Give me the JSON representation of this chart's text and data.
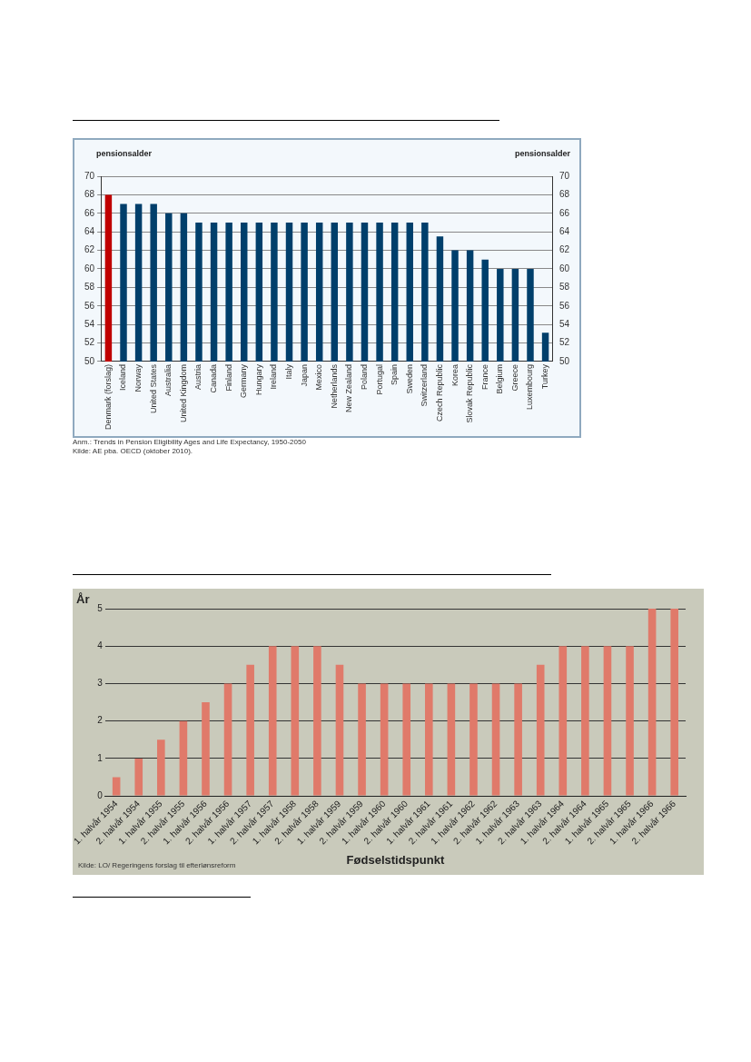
{
  "chart_data": [
    {
      "type": "bar",
      "ylabel": "pensionsalder",
      "y2label": "pensionsalder",
      "categories": [
        "Denmark (forslag)",
        "Iceland",
        "Norway",
        "United States",
        "Australia",
        "United Kingdom",
        "Austria",
        "Canada",
        "Finland",
        "Germany",
        "Hungary",
        "Ireland",
        "Italy",
        "Japan",
        "Mexico",
        "Netherlands",
        "New Zealand",
        "Poland",
        "Portugal",
        "Spain",
        "Sweden",
        "Switzerland",
        "Czech Republic",
        "Korea",
        "Slovak Republic",
        "France",
        "Belgium",
        "Greece",
        "Luxembourg",
        "Turkey"
      ],
      "values": [
        68,
        67,
        67,
        67,
        66,
        66,
        65,
        65,
        65,
        65,
        65,
        65,
        65,
        65,
        65,
        65,
        65,
        65,
        65,
        65,
        65,
        65,
        63.5,
        62,
        62,
        61,
        60,
        60,
        60,
        53.1
      ],
      "colors": [
        "#c00000",
        "#003f6b",
        "#003f6b",
        "#003f6b",
        "#003f6b",
        "#003f6b",
        "#003f6b",
        "#003f6b",
        "#003f6b",
        "#003f6b",
        "#003f6b",
        "#003f6b",
        "#003f6b",
        "#003f6b",
        "#003f6b",
        "#003f6b",
        "#003f6b",
        "#003f6b",
        "#003f6b",
        "#003f6b",
        "#003f6b",
        "#003f6b",
        "#003f6b",
        "#003f6b",
        "#003f6b",
        "#003f6b",
        "#003f6b",
        "#003f6b",
        "#003f6b",
        "#003f6b"
      ],
      "ylim": [
        50,
        70
      ],
      "yticks": [
        50,
        52,
        54,
        56,
        58,
        60,
        62,
        64,
        66,
        68,
        70
      ],
      "y2lim": [
        50,
        70
      ],
      "y2ticks": [
        50,
        52,
        54,
        56,
        58,
        60,
        62,
        64,
        66,
        68,
        70
      ],
      "grid": "y",
      "legend": false,
      "annotations": [
        "Anm.: Trends in Pension Eligibility Ages and Life Expectancy, 1950-2050",
        "Kilde: AE pba. OECD (oktober 2010)."
      ]
    },
    {
      "type": "bar",
      "ylabel": "År",
      "xlabel": "Fødselstidspunkt",
      "categories": [
        "1. halvår 1954",
        "2. halvår 1954",
        "1. halvår 1955",
        "2. halvår 1955",
        "1. halvår 1956",
        "2. halvår 1956",
        "1. halvår 1957",
        "2. halvår 1957",
        "1. halvår 1958",
        "2. halvår 1958",
        "1. halvår 1959",
        "2. halvår 1959",
        "1. halvår 1960",
        "2. halvår 1960",
        "1. halvår 1961",
        "2. halvår 1961",
        "1. halvår 1962",
        "2. halvår 1962",
        "1. halvår 1963",
        "2. halvår 1963",
        "1. halvår 1964",
        "2. halvår 1964",
        "1. halvår 1965",
        "2. halvår 1965",
        "1. halvår 1966",
        "2. halvår 1966"
      ],
      "values": [
        0.5,
        1,
        1.5,
        2,
        2.5,
        3,
        3.5,
        4,
        4,
        4,
        3.5,
        3,
        3,
        3,
        3,
        3,
        3,
        3,
        3,
        3.5,
        4,
        4,
        4,
        4,
        5,
        5
      ],
      "color": "#e07a6a",
      "ylim": [
        0,
        5
      ],
      "yticks": [
        0,
        1,
        2,
        3,
        4,
        5
      ],
      "grid": "y",
      "legend": false,
      "annotations": [
        "Kilde: LO/ Regeringens forslag til efterlønsreform"
      ]
    }
  ]
}
